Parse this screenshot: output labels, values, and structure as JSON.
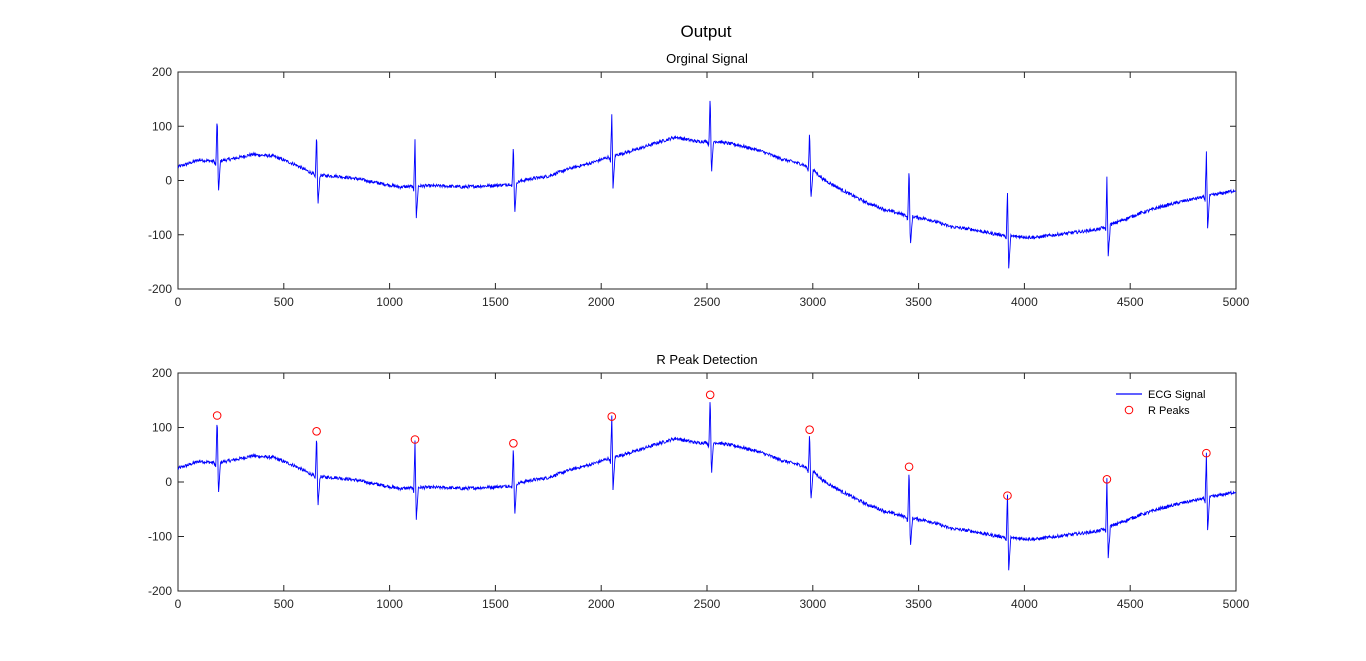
{
  "figure": {
    "suptitle": "Output",
    "colors": {
      "signal": "#0000ff",
      "peaks": "#ff0000",
      "axes": "#262626"
    }
  },
  "chart_data": [
    {
      "type": "line",
      "title": "Orginal Signal",
      "xlabel": "",
      "ylabel": "",
      "xlim": [
        0,
        5000
      ],
      "ylim": [
        -200,
        200
      ],
      "xticks": [
        0,
        500,
        1000,
        1500,
        2000,
        2500,
        3000,
        3500,
        4000,
        4500,
        5000
      ],
      "yticks": [
        -200,
        -100,
        0,
        100,
        200
      ],
      "grid": false,
      "series": [
        {
          "kind": "ecg",
          "baseline": [
            [
              0,
              25
            ],
            [
              100,
              38
            ],
            [
              180,
              35
            ],
            [
              260,
              40
            ],
            [
              350,
              48
            ],
            [
              450,
              45
            ],
            [
              550,
              30
            ],
            [
              650,
              10
            ],
            [
              750,
              8
            ],
            [
              850,
              3
            ],
            [
              950,
              -5
            ],
            [
              1050,
              -12
            ],
            [
              1150,
              -10
            ],
            [
              1250,
              -10
            ],
            [
              1350,
              -12
            ],
            [
              1450,
              -10
            ],
            [
              1550,
              -8
            ],
            [
              1650,
              2
            ],
            [
              1750,
              8
            ],
            [
              1850,
              22
            ],
            [
              1950,
              32
            ],
            [
              2050,
              45
            ],
            [
              2150,
              55
            ],
            [
              2250,
              68
            ],
            [
              2350,
              80
            ],
            [
              2450,
              72
            ],
            [
              2550,
              72
            ],
            [
              2650,
              65
            ],
            [
              2750,
              55
            ],
            [
              2850,
              40
            ],
            [
              2950,
              30
            ],
            [
              3000,
              20
            ],
            [
              3050,
              2
            ],
            [
              3150,
              -20
            ],
            [
              3250,
              -40
            ],
            [
              3350,
              -55
            ],
            [
              3450,
              -65
            ],
            [
              3550,
              -72
            ],
            [
              3650,
              -85
            ],
            [
              3750,
              -90
            ],
            [
              3850,
              -98
            ],
            [
              3950,
              -103
            ],
            [
              4050,
              -105
            ],
            [
              4150,
              -100
            ],
            [
              4250,
              -95
            ],
            [
              4350,
              -90
            ],
            [
              4450,
              -75
            ],
            [
              4550,
              -60
            ],
            [
              4650,
              -48
            ],
            [
              4750,
              -38
            ],
            [
              4850,
              -30
            ],
            [
              4950,
              -22
            ],
            [
              5000,
              -18
            ]
          ],
          "beats": [
            [
              185,
              122
            ],
            [
              655,
              93
            ],
            [
              1120,
              78
            ],
            [
              1585,
              71
            ],
            [
              2050,
              120
            ],
            [
              2515,
              160
            ],
            [
              2985,
              96
            ],
            [
              3455,
              28
            ],
            [
              3920,
              -25
            ],
            [
              4390,
              5
            ],
            [
              4860,
              53
            ]
          ]
        }
      ]
    },
    {
      "type": "line",
      "title": "R Peak Detection",
      "xlabel": "",
      "ylabel": "",
      "xlim": [
        0,
        5000
      ],
      "ylim": [
        -200,
        200
      ],
      "xticks": [
        0,
        500,
        1000,
        1500,
        2000,
        2500,
        3000,
        3500,
        4000,
        4500,
        5000
      ],
      "yticks": [
        -200,
        -100,
        0,
        100,
        200
      ],
      "grid": false,
      "legend": {
        "placement": "top-right",
        "entries": [
          "ECG Signal",
          "R Peaks"
        ]
      },
      "series": [
        {
          "name": "ECG Signal",
          "kind": "ecg",
          "same_as_panel": 0
        },
        {
          "name": "R Peaks",
          "kind": "scatter",
          "marker": "circle",
          "x": [
            185,
            655,
            1120,
            1585,
            2050,
            2515,
            2985,
            3455,
            3920,
            4390,
            4860
          ],
          "y": [
            122,
            93,
            78,
            71,
            120,
            160,
            96,
            28,
            -25,
            5,
            53
          ]
        }
      ]
    }
  ]
}
